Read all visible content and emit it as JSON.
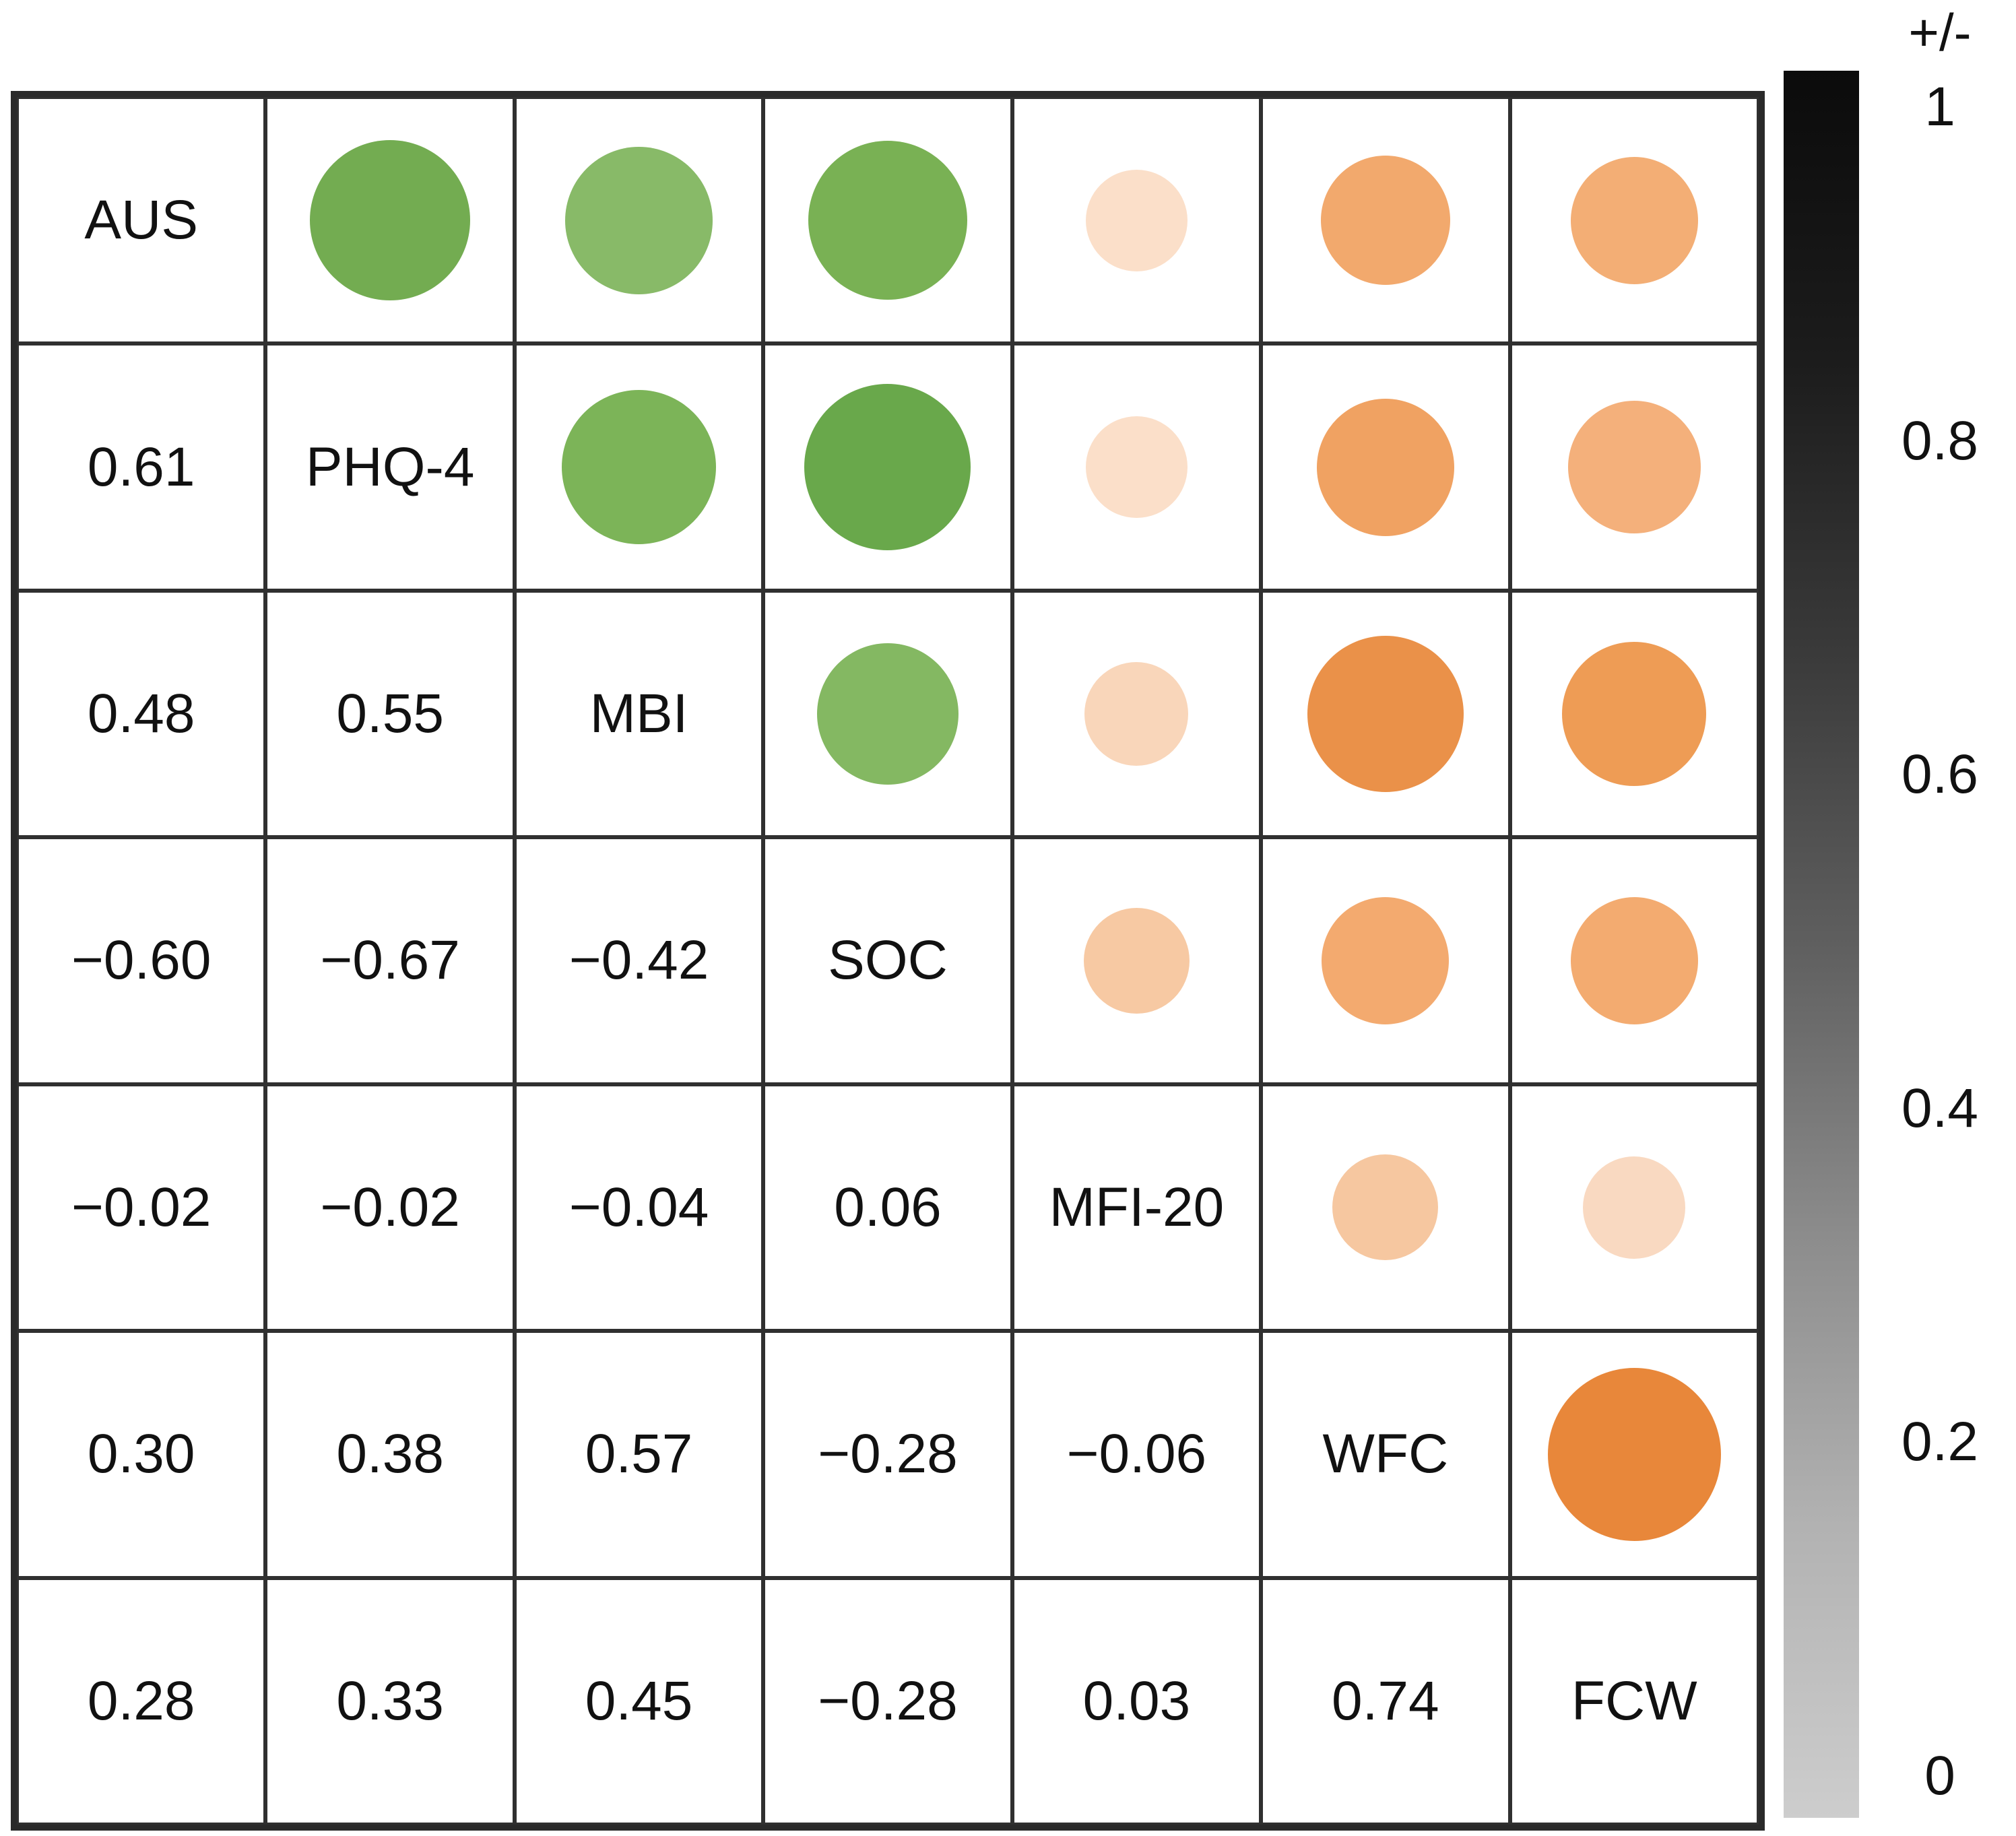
{
  "chart_data": {
    "type": "correlation-matrix-bubble",
    "variables": [
      "AUS",
      "PHQ-4",
      "MBI",
      "SOC",
      "MFI-20",
      "WFC",
      "FCW"
    ],
    "lower_triangle_values": [
      [
        "0.61"
      ],
      [
        "0.48",
        "0.55"
      ],
      [
        "−0.60",
        "−0.67",
        "−0.42"
      ],
      [
        "−0.02",
        "−0.02",
        "−0.04",
        "0.06"
      ],
      [
        "0.30",
        "0.38",
        "0.57",
        "−0.28",
        "−0.06"
      ],
      [
        "0.28",
        "0.33",
        "0.45",
        "−0.28",
        "0.03",
        "0.74"
      ]
    ],
    "upper_triangle_circles": [
      {
        "row": 0,
        "col": 1,
        "r": 0.61,
        "color": "#73ac51"
      },
      {
        "row": 0,
        "col": 2,
        "r": 0.48,
        "color": "#88ba68"
      },
      {
        "row": 0,
        "col": 3,
        "r": -0.6,
        "color": "#79b154"
      },
      {
        "row": 0,
        "col": 4,
        "r": -0.02,
        "color": "#fbdfc9"
      },
      {
        "row": 0,
        "col": 5,
        "r": 0.3,
        "color": "#f2a96d"
      },
      {
        "row": 0,
        "col": 6,
        "r": 0.28,
        "color": "#f3ae75"
      },
      {
        "row": 1,
        "col": 2,
        "r": 0.55,
        "color": "#7cb458"
      },
      {
        "row": 1,
        "col": 3,
        "r": -0.67,
        "color": "#69a84b"
      },
      {
        "row": 1,
        "col": 4,
        "r": -0.02,
        "color": "#fbdfc9"
      },
      {
        "row": 1,
        "col": 5,
        "r": 0.38,
        "color": "#f0a262"
      },
      {
        "row": 1,
        "col": 6,
        "r": 0.33,
        "color": "#f4b07b"
      },
      {
        "row": 2,
        "col": 3,
        "r": -0.42,
        "color": "#84b862"
      },
      {
        "row": 2,
        "col": 4,
        "r": -0.04,
        "color": "#f9d6ba"
      },
      {
        "row": 2,
        "col": 5,
        "r": 0.57,
        "color": "#ea9149"
      },
      {
        "row": 2,
        "col": 6,
        "r": 0.45,
        "color": "#ee9c55"
      },
      {
        "row": 3,
        "col": 4,
        "r": 0.06,
        "color": "#f7c9a3"
      },
      {
        "row": 3,
        "col": 5,
        "r": -0.28,
        "color": "#f3aa6f"
      },
      {
        "row": 3,
        "col": 6,
        "r": -0.28,
        "color": "#f3ab70"
      },
      {
        "row": 4,
        "col": 5,
        "r": -0.06,
        "color": "#f6c7a0"
      },
      {
        "row": 4,
        "col": 6,
        "r": 0.03,
        "color": "#f9d9c1"
      },
      {
        "row": 5,
        "col": 6,
        "r": 0.74,
        "color": "#e8873a"
      }
    ],
    "circle_size_rule": {
      "min_diameter_frac": 0.4,
      "slope_per_abs_r": 0.4
    },
    "positive_group_color": "#69a84b",
    "negative_group_color": "#e8873a",
    "legend": {
      "title": "+/-",
      "ticks": [
        "1",
        "0.8",
        "0.6",
        "0.4",
        "0.2",
        "0"
      ],
      "gradient_stops": [
        "#0b0b0b",
        "#1c1c1c",
        "#3a3a3a",
        "#5f5f5f",
        "#8c8c8c",
        "#b2b2b2",
        "#cdcdcd"
      ]
    },
    "layout": {
      "grid_on": true,
      "legend_position": "right"
    }
  }
}
